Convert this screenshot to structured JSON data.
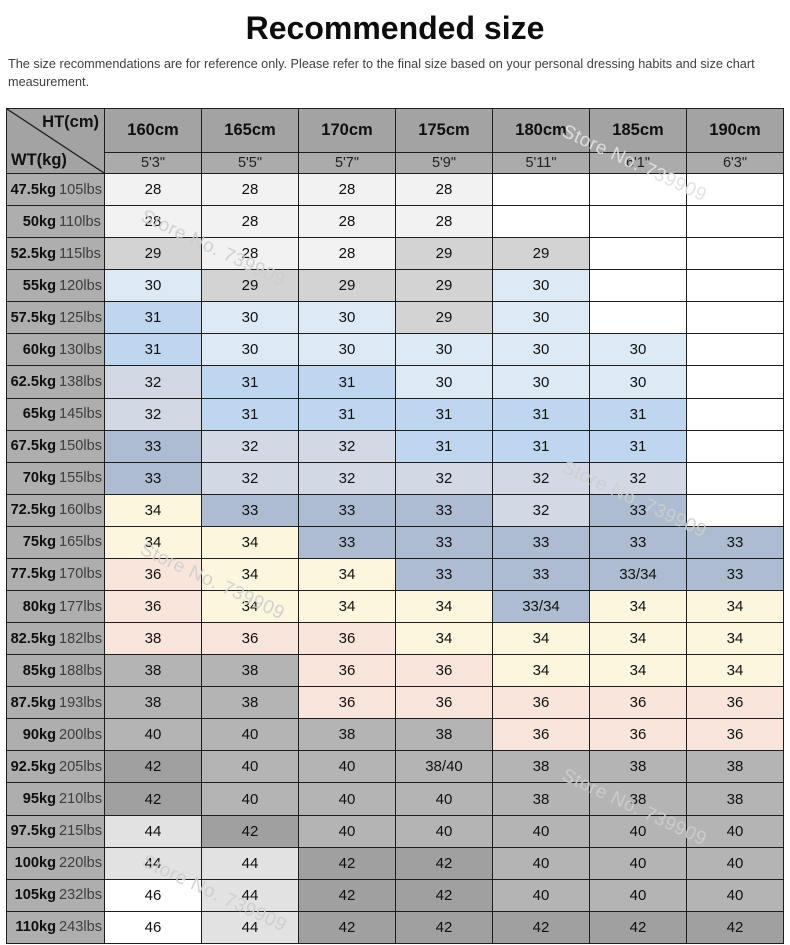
{
  "title": "Recommended size",
  "subtitle": "The size recommendations are for reference only. Please refer to the final size based on your personal dressing habits and size chart measurement.",
  "watermark": {
    "text": "Store No. 739909"
  },
  "palette": {
    "s28": "#f2f2f2",
    "s29": "#d3d3d3",
    "s30": "#dde9f5",
    "s31": "#bed6ef",
    "s32": "#d2d9e4",
    "s33": "#aebcd1",
    "s34": "#fcf6df",
    "s36": "#fae5dd",
    "s38": "#b4b4b4",
    "s42": "#a0a0a0",
    "s44": "#e2e2e2",
    "w": "#ffffff"
  },
  "table": {
    "corner": {
      "top": "HT(cm)",
      "bottom": "WT(kg)"
    },
    "columns": [
      {
        "cm": "160cm",
        "ft": "5'3\""
      },
      {
        "cm": "165cm",
        "ft": "5'5\""
      },
      {
        "cm": "170cm",
        "ft": "5'7\""
      },
      {
        "cm": "175cm",
        "ft": "5'9\""
      },
      {
        "cm": "180cm",
        "ft": "5'11\""
      },
      {
        "cm": "185cm",
        "ft": "6'1\""
      },
      {
        "cm": "190cm",
        "ft": "6'3\""
      }
    ],
    "rows": [
      {
        "kg": "47.5kg",
        "lbs": "105lbs",
        "cells": [
          {
            "v": "28",
            "k": "s28"
          },
          {
            "v": "28",
            "k": "s28"
          },
          {
            "v": "28",
            "k": "s28"
          },
          {
            "v": "28",
            "k": "s28"
          },
          {
            "v": "",
            "k": "w"
          },
          {
            "v": "",
            "k": "w"
          },
          {
            "v": "",
            "k": "w"
          }
        ]
      },
      {
        "kg": "50kg",
        "lbs": "110lbs",
        "cells": [
          {
            "v": "28",
            "k": "s28"
          },
          {
            "v": "28",
            "k": "s28"
          },
          {
            "v": "28",
            "k": "s28"
          },
          {
            "v": "28",
            "k": "s28"
          },
          {
            "v": "",
            "k": "w"
          },
          {
            "v": "",
            "k": "w"
          },
          {
            "v": "",
            "k": "w"
          }
        ]
      },
      {
        "kg": "52.5kg",
        "lbs": "115lbs",
        "cells": [
          {
            "v": "29",
            "k": "s29"
          },
          {
            "v": "28",
            "k": "s28"
          },
          {
            "v": "28",
            "k": "s28"
          },
          {
            "v": "29",
            "k": "s29"
          },
          {
            "v": "29",
            "k": "s29"
          },
          {
            "v": "",
            "k": "w"
          },
          {
            "v": "",
            "k": "w"
          }
        ]
      },
      {
        "kg": "55kg",
        "lbs": "120lbs",
        "cells": [
          {
            "v": "30",
            "k": "s30"
          },
          {
            "v": "29",
            "k": "s29"
          },
          {
            "v": "29",
            "k": "s29"
          },
          {
            "v": "29",
            "k": "s29"
          },
          {
            "v": "30",
            "k": "s30"
          },
          {
            "v": "",
            "k": "w"
          },
          {
            "v": "",
            "k": "w"
          }
        ]
      },
      {
        "kg": "57.5kg",
        "lbs": "125lbs",
        "cells": [
          {
            "v": "31",
            "k": "s31"
          },
          {
            "v": "30",
            "k": "s30"
          },
          {
            "v": "30",
            "k": "s30"
          },
          {
            "v": "29",
            "k": "s29"
          },
          {
            "v": "30",
            "k": "s30"
          },
          {
            "v": "",
            "k": "w"
          },
          {
            "v": "",
            "k": "w"
          }
        ]
      },
      {
        "kg": "60kg",
        "lbs": "130lbs",
        "cells": [
          {
            "v": "31",
            "k": "s31"
          },
          {
            "v": "30",
            "k": "s30"
          },
          {
            "v": "30",
            "k": "s30"
          },
          {
            "v": "30",
            "k": "s30"
          },
          {
            "v": "30",
            "k": "s30"
          },
          {
            "v": "30",
            "k": "s30"
          },
          {
            "v": "",
            "k": "w"
          }
        ]
      },
      {
        "kg": "62.5kg",
        "lbs": "138lbs",
        "cells": [
          {
            "v": "32",
            "k": "s32"
          },
          {
            "v": "31",
            "k": "s31"
          },
          {
            "v": "31",
            "k": "s31"
          },
          {
            "v": "30",
            "k": "s30"
          },
          {
            "v": "30",
            "k": "s30"
          },
          {
            "v": "30",
            "k": "s30"
          },
          {
            "v": "",
            "k": "w"
          }
        ]
      },
      {
        "kg": "65kg",
        "lbs": "145lbs",
        "cells": [
          {
            "v": "32",
            "k": "s32"
          },
          {
            "v": "31",
            "k": "s31"
          },
          {
            "v": "31",
            "k": "s31"
          },
          {
            "v": "31",
            "k": "s31"
          },
          {
            "v": "31",
            "k": "s31"
          },
          {
            "v": "31",
            "k": "s31"
          },
          {
            "v": "",
            "k": "w"
          }
        ]
      },
      {
        "kg": "67.5kg",
        "lbs": "150lbs",
        "cells": [
          {
            "v": "33",
            "k": "s33"
          },
          {
            "v": "32",
            "k": "s32"
          },
          {
            "v": "32",
            "k": "s32"
          },
          {
            "v": "31",
            "k": "s31"
          },
          {
            "v": "31",
            "k": "s31"
          },
          {
            "v": "31",
            "k": "s31"
          },
          {
            "v": "",
            "k": "w"
          }
        ]
      },
      {
        "kg": "70kg",
        "lbs": "155lbs",
        "cells": [
          {
            "v": "33",
            "k": "s33"
          },
          {
            "v": "32",
            "k": "s32"
          },
          {
            "v": "32",
            "k": "s32"
          },
          {
            "v": "32",
            "k": "s32"
          },
          {
            "v": "32",
            "k": "s32"
          },
          {
            "v": "32",
            "k": "s32"
          },
          {
            "v": "",
            "k": "w"
          }
        ]
      },
      {
        "kg": "72.5kg",
        "lbs": "160lbs",
        "cells": [
          {
            "v": "34",
            "k": "s34"
          },
          {
            "v": "33",
            "k": "s33"
          },
          {
            "v": "33",
            "k": "s33"
          },
          {
            "v": "33",
            "k": "s33"
          },
          {
            "v": "32",
            "k": "s32"
          },
          {
            "v": "33",
            "k": "s33"
          },
          {
            "v": "",
            "k": "w"
          }
        ]
      },
      {
        "kg": "75kg",
        "lbs": "165lbs",
        "cells": [
          {
            "v": "34",
            "k": "s34"
          },
          {
            "v": "34",
            "k": "s34"
          },
          {
            "v": "33",
            "k": "s33"
          },
          {
            "v": "33",
            "k": "s33"
          },
          {
            "v": "33",
            "k": "s33"
          },
          {
            "v": "33",
            "k": "s33"
          },
          {
            "v": "33",
            "k": "s33"
          }
        ]
      },
      {
        "kg": "77.5kg",
        "lbs": "170lbs",
        "cells": [
          {
            "v": "36",
            "k": "s36"
          },
          {
            "v": "34",
            "k": "s34"
          },
          {
            "v": "34",
            "k": "s34"
          },
          {
            "v": "33",
            "k": "s33"
          },
          {
            "v": "33",
            "k": "s33"
          },
          {
            "v": "33/34",
            "k": "s33"
          },
          {
            "v": "33",
            "k": "s33"
          }
        ]
      },
      {
        "kg": "80kg",
        "lbs": "177lbs",
        "cells": [
          {
            "v": "36",
            "k": "s36"
          },
          {
            "v": "34",
            "k": "s34"
          },
          {
            "v": "34",
            "k": "s34"
          },
          {
            "v": "34",
            "k": "s34"
          },
          {
            "v": "33/34",
            "k": "s33"
          },
          {
            "v": "34",
            "k": "s34"
          },
          {
            "v": "34",
            "k": "s34"
          }
        ]
      },
      {
        "kg": "82.5kg",
        "lbs": "182lbs",
        "cells": [
          {
            "v": "38",
            "k": "s36"
          },
          {
            "v": "36",
            "k": "s36"
          },
          {
            "v": "36",
            "k": "s36"
          },
          {
            "v": "34",
            "k": "s34"
          },
          {
            "v": "34",
            "k": "s34"
          },
          {
            "v": "34",
            "k": "s34"
          },
          {
            "v": "34",
            "k": "s34"
          }
        ]
      },
      {
        "kg": "85kg",
        "lbs": "188lbs",
        "cells": [
          {
            "v": "38",
            "k": "s38"
          },
          {
            "v": "38",
            "k": "s38"
          },
          {
            "v": "36",
            "k": "s36"
          },
          {
            "v": "36",
            "k": "s36"
          },
          {
            "v": "34",
            "k": "s34"
          },
          {
            "v": "34",
            "k": "s34"
          },
          {
            "v": "34",
            "k": "s34"
          }
        ]
      },
      {
        "kg": "87.5kg",
        "lbs": "193lbs",
        "cells": [
          {
            "v": "38",
            "k": "s38"
          },
          {
            "v": "38",
            "k": "s38"
          },
          {
            "v": "36",
            "k": "s36"
          },
          {
            "v": "36",
            "k": "s36"
          },
          {
            "v": "36",
            "k": "s36"
          },
          {
            "v": "36",
            "k": "s36"
          },
          {
            "v": "36",
            "k": "s36"
          }
        ]
      },
      {
        "kg": "90kg",
        "lbs": "200lbs",
        "cells": [
          {
            "v": "40",
            "k": "s38"
          },
          {
            "v": "40",
            "k": "s38"
          },
          {
            "v": "38",
            "k": "s38"
          },
          {
            "v": "38",
            "k": "s38"
          },
          {
            "v": "36",
            "k": "s36"
          },
          {
            "v": "36",
            "k": "s36"
          },
          {
            "v": "36",
            "k": "s36"
          }
        ]
      },
      {
        "kg": "92.5kg",
        "lbs": "205lbs",
        "cells": [
          {
            "v": "42",
            "k": "s42"
          },
          {
            "v": "40",
            "k": "s38"
          },
          {
            "v": "40",
            "k": "s38"
          },
          {
            "v": "38/40",
            "k": "s38"
          },
          {
            "v": "38",
            "k": "s38"
          },
          {
            "v": "38",
            "k": "s38"
          },
          {
            "v": "38",
            "k": "s38"
          }
        ]
      },
      {
        "kg": "95kg",
        "lbs": "210lbs",
        "cells": [
          {
            "v": "42",
            "k": "s42"
          },
          {
            "v": "40",
            "k": "s38"
          },
          {
            "v": "40",
            "k": "s38"
          },
          {
            "v": "40",
            "k": "s38"
          },
          {
            "v": "38",
            "k": "s38"
          },
          {
            "v": "38",
            "k": "s38"
          },
          {
            "v": "38",
            "k": "s38"
          }
        ]
      },
      {
        "kg": "97.5kg",
        "lbs": "215lbs",
        "cells": [
          {
            "v": "44",
            "k": "s44"
          },
          {
            "v": "42",
            "k": "s42"
          },
          {
            "v": "40",
            "k": "s38"
          },
          {
            "v": "40",
            "k": "s38"
          },
          {
            "v": "40",
            "k": "s38"
          },
          {
            "v": "40",
            "k": "s38"
          },
          {
            "v": "40",
            "k": "s38"
          }
        ]
      },
      {
        "kg": "100kg",
        "lbs": "220lbs",
        "cells": [
          {
            "v": "44",
            "k": "s44"
          },
          {
            "v": "44",
            "k": "s44"
          },
          {
            "v": "42",
            "k": "s42"
          },
          {
            "v": "42",
            "k": "s42"
          },
          {
            "v": "40",
            "k": "s38"
          },
          {
            "v": "40",
            "k": "s38"
          },
          {
            "v": "40",
            "k": "s38"
          }
        ]
      },
      {
        "kg": "105kg",
        "lbs": "232lbs",
        "cells": [
          {
            "v": "46",
            "k": "w"
          },
          {
            "v": "44",
            "k": "s44"
          },
          {
            "v": "42",
            "k": "s42"
          },
          {
            "v": "42",
            "k": "s42"
          },
          {
            "v": "40",
            "k": "s38"
          },
          {
            "v": "40",
            "k": "s38"
          },
          {
            "v": "40",
            "k": "s38"
          }
        ]
      },
      {
        "kg": "110kg",
        "lbs": "243lbs",
        "cells": [
          {
            "v": "46",
            "k": "w"
          },
          {
            "v": "44",
            "k": "s44"
          },
          {
            "v": "42",
            "k": "s42"
          },
          {
            "v": "42",
            "k": "s42"
          },
          {
            "v": "42",
            "k": "s42"
          },
          {
            "v": "42",
            "k": "s42"
          },
          {
            "v": "42",
            "k": "s42"
          }
        ]
      }
    ]
  },
  "chart_data": {
    "type": "table",
    "title": "Recommended size",
    "note": "The size recommendations are for reference only. Please refer to the final size based on your personal dressing habits and size chart measurement.",
    "column_header": "HT(cm)",
    "row_header": "WT(kg)",
    "columns_height_cm": [
      "160cm",
      "165cm",
      "170cm",
      "175cm",
      "180cm",
      "185cm",
      "190cm"
    ],
    "columns_height_ft": [
      "5'3\"",
      "5'5\"",
      "5'7\"",
      "5'9\"",
      "5'11\"",
      "6'1\"",
      "6'3\""
    ],
    "rows_weight": [
      "47.5kg 105lbs",
      "50kg 110lbs",
      "52.5kg 115lbs",
      "55kg 120lbs",
      "57.5kg 125lbs",
      "60kg 130lbs",
      "62.5kg 138lbs",
      "65kg 145lbs",
      "67.5kg 150lbs",
      "70kg 155lbs",
      "72.5kg 160lbs",
      "75kg 165lbs",
      "77.5kg 170lbs",
      "80kg 177lbs",
      "82.5kg 182lbs",
      "85kg 188lbs",
      "87.5kg 193lbs",
      "90kg 200lbs",
      "92.5kg 205lbs",
      "95kg 210lbs",
      "97.5kg 215lbs",
      "100kg 220lbs",
      "105kg 232lbs",
      "110kg 243lbs"
    ],
    "values": [
      [
        "28",
        "28",
        "28",
        "28",
        "",
        "",
        ""
      ],
      [
        "28",
        "28",
        "28",
        "28",
        "",
        "",
        ""
      ],
      [
        "29",
        "28",
        "28",
        "29",
        "29",
        "",
        ""
      ],
      [
        "30",
        "29",
        "29",
        "29",
        "30",
        "",
        ""
      ],
      [
        "31",
        "30",
        "30",
        "29",
        "30",
        "",
        ""
      ],
      [
        "31",
        "30",
        "30",
        "30",
        "30",
        "30",
        ""
      ],
      [
        "32",
        "31",
        "31",
        "30",
        "30",
        "30",
        ""
      ],
      [
        "32",
        "31",
        "31",
        "31",
        "31",
        "31",
        ""
      ],
      [
        "33",
        "32",
        "32",
        "31",
        "31",
        "31",
        ""
      ],
      [
        "33",
        "32",
        "32",
        "32",
        "32",
        "32",
        ""
      ],
      [
        "34",
        "33",
        "33",
        "33",
        "32",
        "33",
        ""
      ],
      [
        "34",
        "34",
        "33",
        "33",
        "33",
        "33",
        "33"
      ],
      [
        "36",
        "34",
        "34",
        "33",
        "33",
        "33/34",
        "33"
      ],
      [
        "36",
        "34",
        "34",
        "34",
        "33/34",
        "34",
        "34"
      ],
      [
        "38",
        "36",
        "36",
        "34",
        "34",
        "34",
        "34"
      ],
      [
        "38",
        "38",
        "36",
        "36",
        "34",
        "34",
        "34"
      ],
      [
        "38",
        "38",
        "36",
        "36",
        "36",
        "36",
        "36"
      ],
      [
        "40",
        "40",
        "38",
        "38",
        "36",
        "36",
        "36"
      ],
      [
        "42",
        "40",
        "40",
        "38/40",
        "38",
        "38",
        "38"
      ],
      [
        "42",
        "40",
        "40",
        "40",
        "38",
        "38",
        "38"
      ],
      [
        "44",
        "42",
        "40",
        "40",
        "40",
        "40",
        "40"
      ],
      [
        "44",
        "44",
        "42",
        "42",
        "40",
        "40",
        "40"
      ],
      [
        "46",
        "44",
        "42",
        "42",
        "40",
        "40",
        "40"
      ],
      [
        "46",
        "44",
        "42",
        "42",
        "42",
        "42",
        "42"
      ]
    ],
    "watermark_text": "Store No. 739909"
  }
}
